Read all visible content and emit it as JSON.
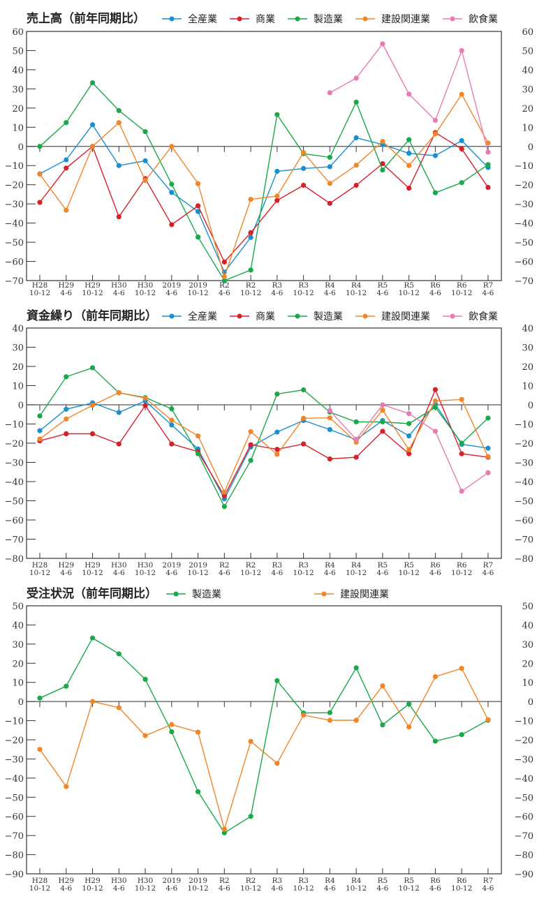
{
  "colors": {
    "全産業": "#1a8fd0",
    "商業": "#d6202a",
    "製造業": "#1aa84a",
    "建設関連業": "#f0862a",
    "飲食業": "#ea7ab5"
  },
  "chart_data": [
    {
      "type": "line",
      "title": "売上高（前年同期比）",
      "xlabel": "",
      "ylabel": "",
      "ylim": [
        -70,
        60
      ],
      "ytick_step": 10,
      "grid": false,
      "legend": "top",
      "categories": [
        [
          "H28",
          "10-12"
        ],
        [
          "H29",
          "4-6"
        ],
        [
          "H29",
          "10-12"
        ],
        [
          "H30",
          "4-6"
        ],
        [
          "H30",
          "10-12"
        ],
        [
          "2019",
          "4-6"
        ],
        [
          "2019",
          "10-12"
        ],
        [
          "R2",
          "4-6"
        ],
        [
          "R2",
          "10-12"
        ],
        [
          "R3",
          "4-6"
        ],
        [
          "R3",
          "10-12"
        ],
        [
          "R4",
          "4-6"
        ],
        [
          "R4",
          "10-12"
        ],
        [
          "R5",
          "4-6"
        ],
        [
          "R5",
          "10-12"
        ],
        [
          "R6",
          "4-6"
        ],
        [
          "R6",
          "10-12"
        ],
        [
          "R7",
          "4-6"
        ]
      ],
      "series": [
        {
          "name": "全産業",
          "values": [
            -14.3,
            -7,
            11.3,
            -10,
            -7.5,
            -24,
            -34,
            -65.6,
            -47.5,
            -13,
            -11.5,
            -10.6,
            4.5,
            1,
            -3.6,
            -4.8,
            3,
            -11
          ]
        },
        {
          "name": "商業",
          "values": [
            -29.2,
            -11.3,
            0,
            -36.7,
            -16.8,
            -40.8,
            -31,
            -60.3,
            -45,
            -28.2,
            -20.3,
            -29.7,
            -20.3,
            -9,
            -21.8,
            7.2,
            -1.3,
            -21.4
          ]
        },
        {
          "name": "製造業",
          "values": [
            0,
            12.4,
            33.2,
            18.7,
            7.7,
            -19.7,
            -47.3,
            -70,
            -64.5,
            16.6,
            -3.8,
            -5.7,
            23.1,
            -12.3,
            3.5,
            -24.2,
            -18.9,
            -9.5
          ]
        },
        {
          "name": "建設関連業",
          "values": [
            -14.5,
            -33.3,
            0,
            12.4,
            -17.8,
            0,
            -19.4,
            -68,
            -27.6,
            -25.9,
            -3.2,
            -19.3,
            -9.8,
            2.6,
            -10,
            6.5,
            27.2,
            1.8
          ]
        },
        {
          "name": "飲食業",
          "values": [
            null,
            null,
            null,
            null,
            null,
            null,
            null,
            null,
            null,
            null,
            null,
            28,
            35.6,
            53.5,
            27.3,
            13.6,
            50,
            -3
          ]
        }
      ]
    },
    {
      "type": "line",
      "title": "資金繰り（前年同期比）",
      "xlabel": "",
      "ylabel": "",
      "ylim": [
        -80,
        40
      ],
      "ytick_step": 10,
      "grid": false,
      "legend": "top",
      "categories": [
        [
          "H28",
          "10-12"
        ],
        [
          "H29",
          "4-6"
        ],
        [
          "H29",
          "10-12"
        ],
        [
          "H30",
          "4-6"
        ],
        [
          "H30",
          "10-12"
        ],
        [
          "2019",
          "4-6"
        ],
        [
          "2019",
          "10-12"
        ],
        [
          "R2",
          "4-6"
        ],
        [
          "R2",
          "10-12"
        ],
        [
          "R3",
          "4-6"
        ],
        [
          "R3",
          "10-12"
        ],
        [
          "R4",
          "4-6"
        ],
        [
          "R4",
          "10-12"
        ],
        [
          "R5",
          "4-6"
        ],
        [
          "R5",
          "10-12"
        ],
        [
          "R6",
          "4-6"
        ],
        [
          "R6",
          "10-12"
        ],
        [
          "R7",
          "4-6"
        ]
      ],
      "series": [
        {
          "name": "全産業",
          "values": [
            -13.5,
            -2.3,
            1,
            -4,
            2,
            -10.5,
            -23,
            -49,
            -22,
            -14.2,
            -8.2,
            -12.9,
            -18.2,
            -8.2,
            -16.2,
            0.3,
            -20.6,
            -22.6
          ]
        },
        {
          "name": "商業",
          "values": [
            -18.8,
            -15.1,
            -15.1,
            -20.4,
            -0.4,
            -20.4,
            -24.4,
            -47.5,
            -20.8,
            -23.2,
            -20.4,
            -28.2,
            -27.3,
            -13.8,
            -25.5,
            7.9,
            -25.5,
            -27.3
          ]
        },
        {
          "name": "製造業",
          "values": [
            -5.8,
            14.6,
            19.3,
            6.3,
            3.8,
            -2.1,
            -25.5,
            -53,
            -29,
            5.6,
            7.8,
            -3.8,
            -8.9,
            -8.9,
            -9.8,
            -1.3,
            -20,
            -6.9
          ]
        },
        {
          "name": "建設関連業",
          "values": [
            -17.8,
            -7.4,
            -0.2,
            6.3,
            3.5,
            -8,
            -16.2,
            -45.5,
            -14,
            -25.8,
            -7,
            -6.8,
            -19.5,
            -2.8,
            -23.3,
            2,
            2.8,
            -27
          ]
        },
        {
          "name": "飲食業",
          "values": [
            null,
            null,
            null,
            null,
            null,
            null,
            null,
            null,
            null,
            null,
            null,
            -3,
            -18,
            0,
            -4.6,
            -13.8,
            -45,
            -35.4
          ]
        }
      ]
    },
    {
      "type": "line",
      "title": "受注状況（前年同期比）",
      "xlabel": "",
      "ylabel": "",
      "ylim": [
        -90,
        50
      ],
      "ytick_step": 10,
      "grid": false,
      "legend": "top",
      "categories": [
        [
          "H28",
          "10-12"
        ],
        [
          "H29",
          "4-6"
        ],
        [
          "H29",
          "10-12"
        ],
        [
          "H30",
          "4-6"
        ],
        [
          "H30",
          "10-12"
        ],
        [
          "2019",
          "4-6"
        ],
        [
          "2019",
          "10-12"
        ],
        [
          "R2",
          "4-6"
        ],
        [
          "R2",
          "10-12"
        ],
        [
          "R3",
          "4-6"
        ],
        [
          "R3",
          "10-12"
        ],
        [
          "R4",
          "4-6"
        ],
        [
          "R4",
          "10-12"
        ],
        [
          "R5",
          "4-6"
        ],
        [
          "R5",
          "10-12"
        ],
        [
          "R6",
          "4-6"
        ],
        [
          "R6",
          "10-12"
        ],
        [
          "R7",
          "4-6"
        ]
      ],
      "series": [
        {
          "name": "製造業",
          "values": [
            1.8,
            8,
            33.2,
            24.9,
            11.6,
            -15.8,
            -47.1,
            -68.6,
            -60,
            10.9,
            -6,
            -5.8,
            17.6,
            -12.2,
            -1.3,
            -20.7,
            -17.3,
            -9.8
          ]
        },
        {
          "name": "建設関連業",
          "values": [
            -25,
            -44.4,
            0,
            -3.2,
            -17.8,
            -12,
            -16,
            -66.7,
            -20.8,
            -32.3,
            -7.1,
            -9.8,
            -9.8,
            8.2,
            -13.3,
            13,
            17.3,
            -9.5
          ]
        }
      ]
    }
  ]
}
